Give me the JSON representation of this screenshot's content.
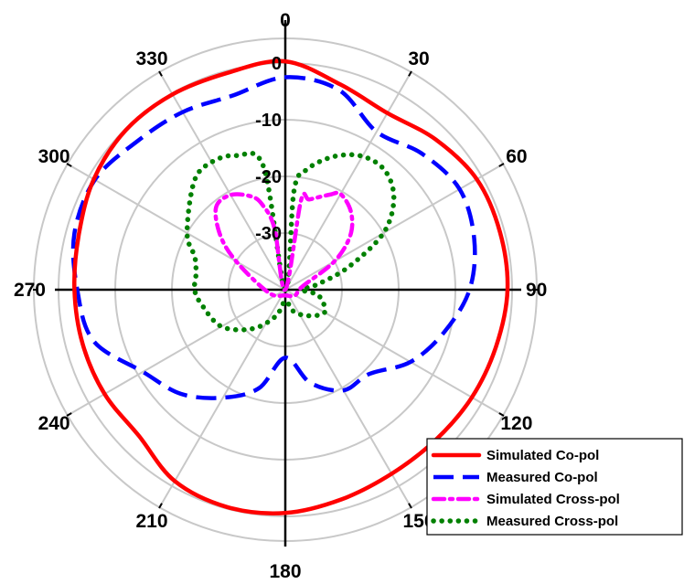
{
  "chart_data": {
    "type": "polar-line",
    "title": "",
    "angle_unit": "degrees",
    "angle_zero": "top",
    "angle_direction": "clockwise",
    "angle_ticks": [
      0,
      30,
      60,
      90,
      120,
      150,
      180,
      210,
      240,
      270,
      300,
      330
    ],
    "angle_tick_labels": [
      "0",
      "30",
      "60",
      "90",
      "120",
      "150",
      "180",
      "210",
      "240",
      "270",
      "300",
      "330"
    ],
    "radial_range": [
      -40,
      0
    ],
    "radial_ticks": [
      -30,
      -20,
      -10,
      0
    ],
    "radial_tick_labels": [
      "-30",
      "-20",
      "-10",
      "0"
    ],
    "grid": true,
    "legend": {
      "placement": "bottom-right"
    },
    "series": [
      {
        "name": "Simulated Co-pol",
        "color": "#ff0000",
        "style": "solid",
        "angles": [
          0,
          15,
          30,
          45,
          60,
          75,
          90,
          105,
          120,
          135,
          150,
          165,
          180,
          195,
          210,
          225,
          240,
          255,
          270,
          285,
          300,
          315,
          330,
          345
        ],
        "values": [
          0.3,
          -2.5,
          -4.0,
          -2.5,
          -1.0,
          -0.8,
          -0.8,
          -1.5,
          -2.0,
          -2.5,
          -2.5,
          -1.7,
          -0.6,
          -0.3,
          -1.0,
          -3.5,
          -3.2,
          -3.0,
          -2.8,
          -2.3,
          -1.0,
          -0.2,
          -0.2,
          -0.4
        ]
      },
      {
        "name": "Measured Co-pol",
        "color": "#0000ff",
        "style": "dashed",
        "angles": [
          0,
          15,
          30,
          45,
          60,
          75,
          90,
          105,
          120,
          135,
          150,
          165,
          180,
          195,
          210,
          225,
          240,
          255,
          270,
          285,
          300,
          315,
          330,
          345
        ],
        "values": [
          -2.5,
          -3.5,
          -7.8,
          -6.0,
          -4.5,
          -5.5,
          -7.5,
          -11.0,
          -14.5,
          -19.0,
          -19.5,
          -23.0,
          -28.0,
          -22.0,
          -18.0,
          -14.0,
          -11.0,
          -5.0,
          -3.3,
          -1.5,
          -1.2,
          -3.0,
          -3.8,
          -4.5
        ]
      },
      {
        "name": "Simulated Cross-pol",
        "color": "#ff00ff",
        "style": "dash-dot",
        "angles": [
          0,
          10,
          15,
          25,
          30,
          40,
          50,
          60,
          80,
          120,
          180,
          260,
          300,
          310,
          320,
          330,
          340,
          345,
          350,
          360
        ],
        "values": [
          -40,
          -24.0,
          -23.5,
          -21.5,
          -20.5,
          -22.0,
          -25.0,
          -30.0,
          -37.0,
          -38.0,
          -39.0,
          -37.0,
          -30.0,
          -25.0,
          -21.0,
          -20.7,
          -22.5,
          -24.5,
          -29.0,
          -40
        ]
      },
      {
        "name": "Measured Cross-pol",
        "color": "#008000",
        "style": "dotted",
        "angles": [
          0,
          5,
          10,
          20,
          30,
          40,
          50,
          60,
          70,
          80,
          90,
          100,
          120,
          140,
          160,
          180,
          200,
          220,
          240,
          260,
          270,
          280,
          290,
          300,
          320,
          330,
          340,
          350,
          360
        ],
        "values": [
          -40,
          -22.5,
          -18.5,
          -15.0,
          -12.8,
          -12.6,
          -15.0,
          -20.0,
          -28.0,
          -34.0,
          -37.0,
          -34.0,
          -32.0,
          -34.0,
          -36.0,
          -38.0,
          -35.0,
          -31.0,
          -27.0,
          -25.0,
          -24.0,
          -24.0,
          -23.0,
          -20.0,
          -15.0,
          -14.0,
          -14.8,
          -18.0,
          -40
        ]
      }
    ]
  }
}
